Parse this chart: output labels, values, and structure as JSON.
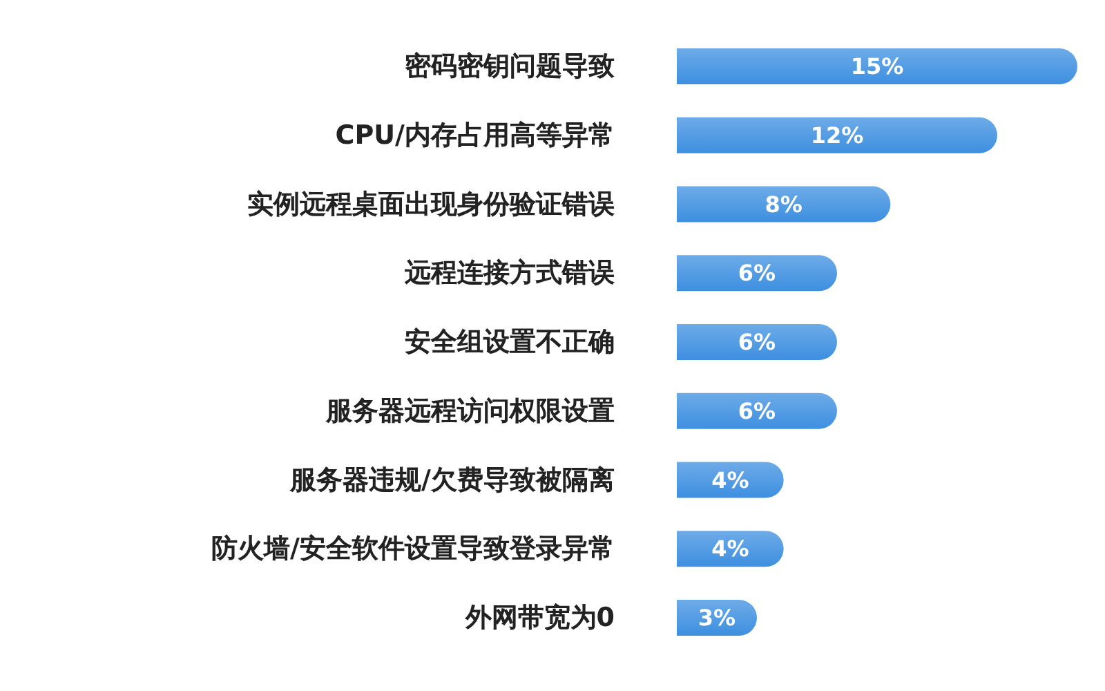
{
  "chart_data": {
    "type": "bar",
    "orientation": "horizontal",
    "categories": [
      "密码密钥问题导致",
      "CPU/内存占用高等异常",
      "实例远程桌面出现身份验证错误",
      "远程连接方式错误",
      "安全组设置不正确",
      "服务器远程访问权限设置",
      "服务器违规/欠费导致被隔离",
      "防火墙/安全软件设置导致登录异常",
      "外网带宽为0"
    ],
    "values": [
      15,
      12,
      8,
      6,
      6,
      6,
      4,
      4,
      3
    ],
    "value_labels": [
      "15%",
      "12%",
      "8%",
      "6%",
      "6%",
      "6%",
      "4%",
      "4%",
      "3%"
    ],
    "color": "#3d8fe0"
  }
}
